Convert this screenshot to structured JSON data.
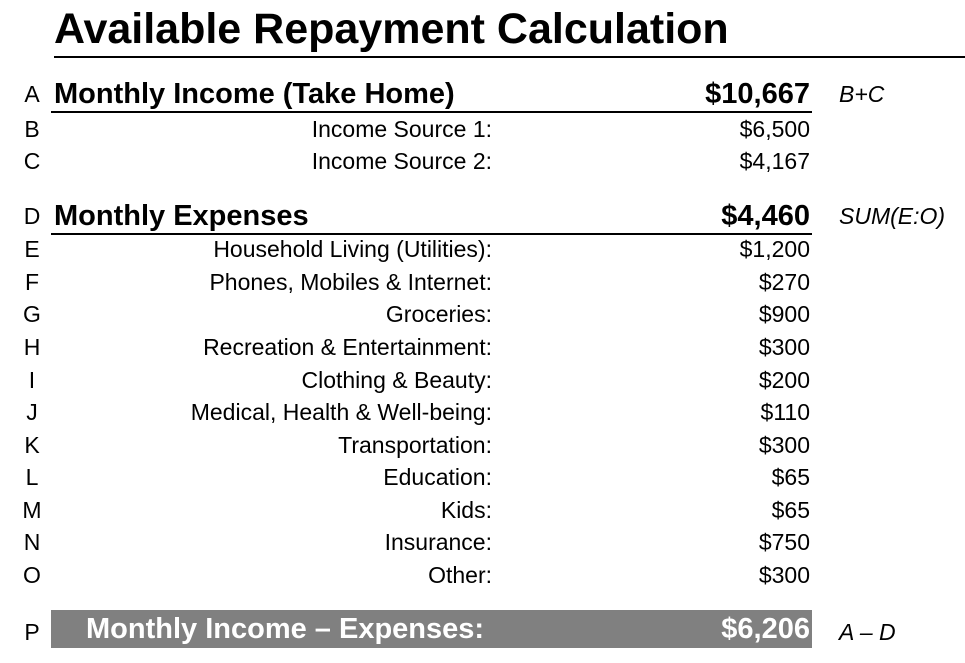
{
  "title": "Available Repayment Calculation",
  "income": {
    "letter": "A",
    "label": "Monthly Income (Take Home)",
    "value": "$10,667",
    "formula": "B+C",
    "items": [
      {
        "letter": "B",
        "label": "Income Source 1:",
        "value": "$6,500"
      },
      {
        "letter": "C",
        "label": "Income Source 2:",
        "value": "$4,167"
      }
    ]
  },
  "expenses": {
    "letter": "D",
    "label": "Monthly Expenses",
    "value": "$4,460",
    "formula": "SUM(E:O)",
    "items": [
      {
        "letter": "E",
        "label": "Household Living (Utilities):",
        "value": "$1,200"
      },
      {
        "letter": "F",
        "label": "Phones, Mobiles & Internet:",
        "value": "$270"
      },
      {
        "letter": "G",
        "label": "Groceries:",
        "value": "$900"
      },
      {
        "letter": "H",
        "label": "Recreation & Entertainment:",
        "value": "$300"
      },
      {
        "letter": "I",
        "label": "Clothing & Beauty:",
        "value": "$200"
      },
      {
        "letter": "J",
        "label": "Medical, Health & Well-being:",
        "value": "$110"
      },
      {
        "letter": "K",
        "label": "Transportation:",
        "value": "$300"
      },
      {
        "letter": "L",
        "label": "Education:",
        "value": "$65"
      },
      {
        "letter": "M",
        "label": "Kids:",
        "value": "$65"
      },
      {
        "letter": "N",
        "label": "Insurance:",
        "value": "$750"
      },
      {
        "letter": "O",
        "label": "Other:",
        "value": "$300"
      }
    ]
  },
  "total": {
    "letter": "P",
    "label": "Monthly Income – Expenses:",
    "value": "$6,206",
    "formula": "A – D",
    "bar_color": "#808080"
  }
}
